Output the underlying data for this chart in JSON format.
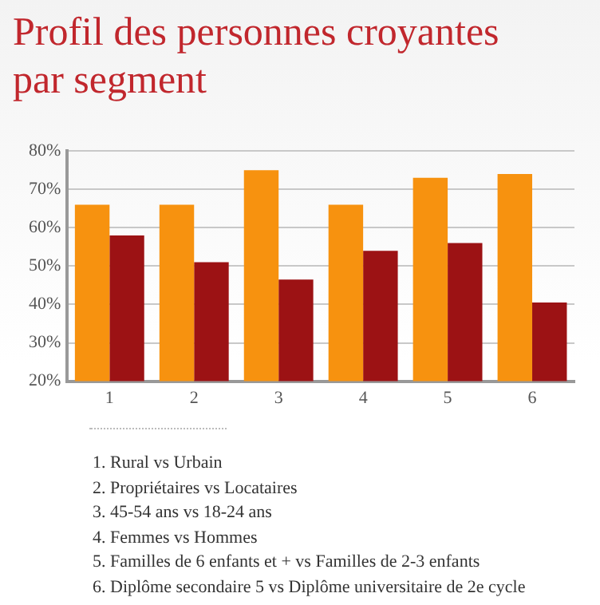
{
  "chart_data": {
    "type": "bar",
    "title": "Profil des personnes croyantes par segment",
    "categories": [
      "1",
      "2",
      "3",
      "4",
      "5",
      "6"
    ],
    "series": [
      {
        "color": "#f7920f",
        "values": [
          66,
          66,
          75,
          66,
          73,
          74
        ]
      },
      {
        "color": "#9c1214",
        "values": [
          58,
          51,
          46.5,
          54,
          56,
          40.5
        ]
      }
    ],
    "ylim": [
      20,
      80
    ],
    "yticks": [
      {
        "value": 20,
        "label": "20%"
      },
      {
        "value": 30,
        "label": "30%"
      },
      {
        "value": 40,
        "label": "40%"
      },
      {
        "value": 50,
        "label": "50%"
      },
      {
        "value": 60,
        "label": "60%"
      },
      {
        "value": 70,
        "label": "70%"
      },
      {
        "value": 80,
        "label": "80%"
      }
    ],
    "grid": "y",
    "legend": false,
    "annotations": [
      "1. Rural vs Urbain",
      "2. Propriétaires vs Locataires",
      "3. 45-54 ans vs 18-24 ans",
      "4. Femmes vs Hommes",
      "5. Familles de 6 enfants et + vs Familles de 2-3 enfants",
      "6. Diplôme secondaire 5 vs Diplôme universitaire de 2e cycle"
    ]
  }
}
